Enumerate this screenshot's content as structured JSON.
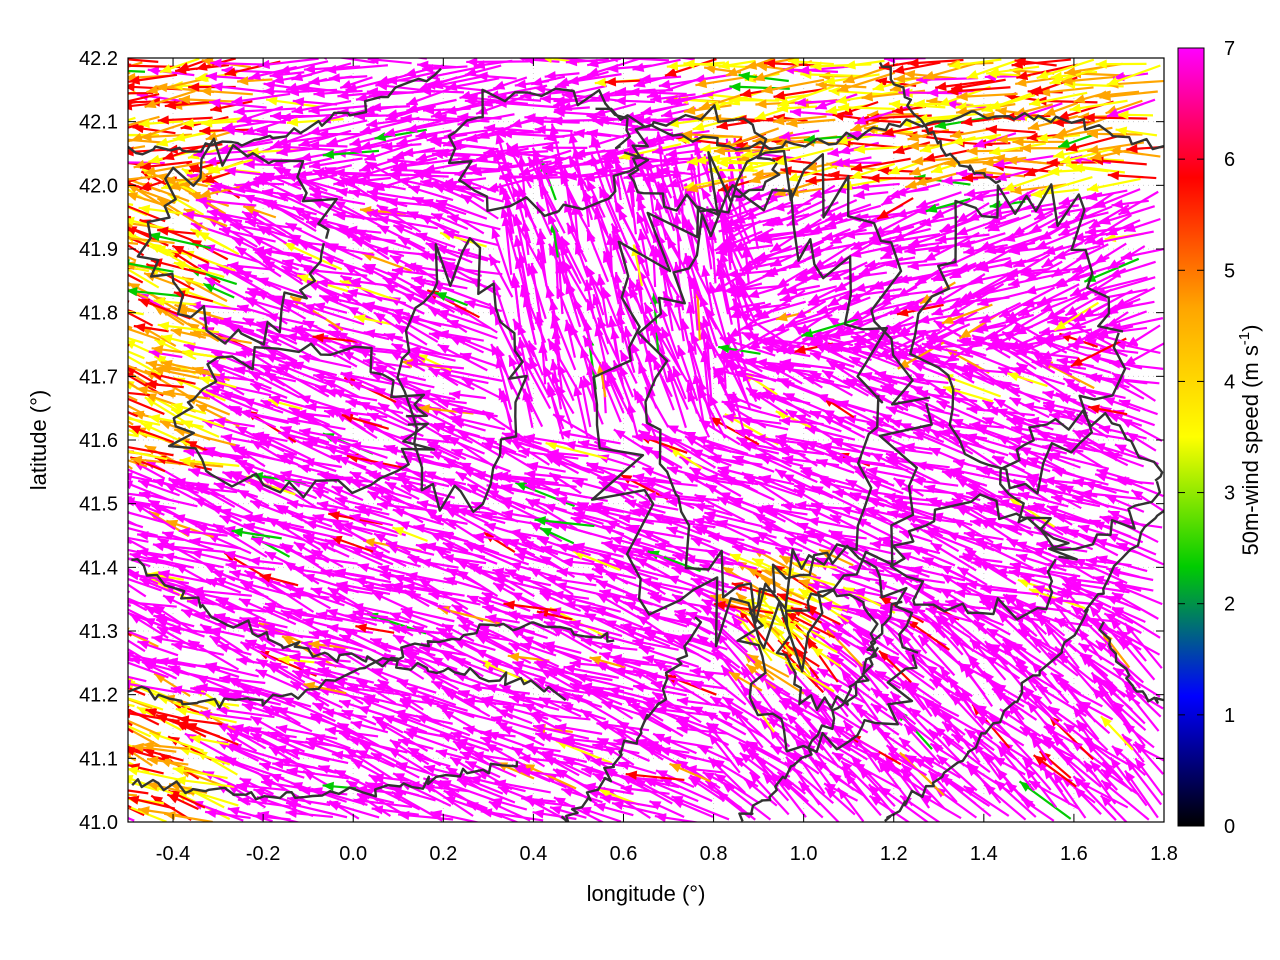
{
  "chart_data": {
    "type": "vector-field",
    "xlabel": "longitude (°)",
    "ylabel": "latitude (°)",
    "xlim": [
      -0.5,
      1.8
    ],
    "ylim": [
      41.0,
      42.2
    ],
    "xticks": [
      -0.4,
      -0.2,
      0.0,
      0.2,
      0.4,
      0.6,
      0.8,
      1.0,
      1.2,
      1.4,
      1.6,
      1.8
    ],
    "yticks": [
      41.0,
      41.1,
      41.2,
      41.3,
      41.4,
      41.5,
      41.6,
      41.7,
      41.8,
      41.9,
      42.0,
      42.1,
      42.2
    ],
    "grid": true,
    "colorbar": {
      "label_main": "50m-wind speed (m s",
      "label_sup": "-1",
      "label_end": ")",
      "range": [
        0,
        7
      ],
      "ticks": [
        0,
        1,
        2,
        3,
        4,
        5,
        6,
        7
      ],
      "colormap": [
        "#000000",
        "#0000ff",
        "#00cc00",
        "#ffff00",
        "#ffa500",
        "#ff0000",
        "#ff00ff"
      ]
    },
    "field_description": "Dense 50 m wind vectors over terrain contours; dominant flow from the east-southeast toward the west-northwest at speeds ≥7 m/s (magenta), with weaker (red/orange/green) arrows near the western edge and in the northern valleys.",
    "contour_color": "#333333"
  }
}
